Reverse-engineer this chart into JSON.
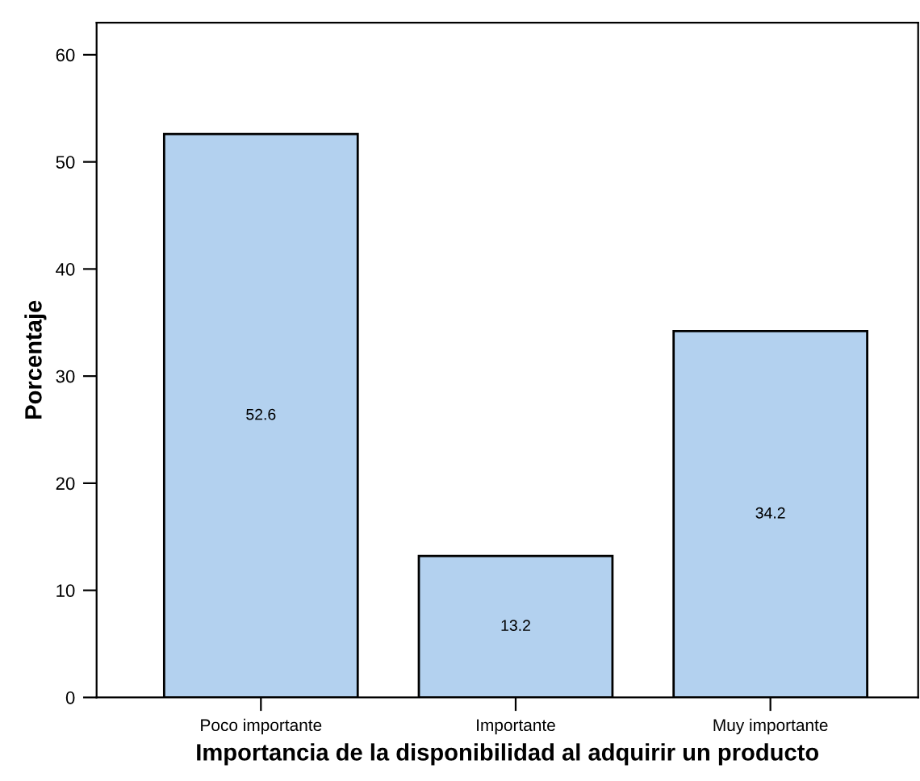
{
  "chart_data": {
    "type": "bar",
    "xlabel": "Importancia de la disponibilidad al adquirir un producto",
    "ylabel": "Porcentaje",
    "categories": [
      "Poco importante",
      "Importante",
      "Muy importante"
    ],
    "values": [
      52.6,
      13.2,
      34.2
    ],
    "color": "#b3d1ef",
    "ylim": [
      0,
      63
    ],
    "yticks": [
      0,
      10,
      20,
      30,
      40,
      50,
      60
    ],
    "grid": false,
    "data_labels": true
  }
}
